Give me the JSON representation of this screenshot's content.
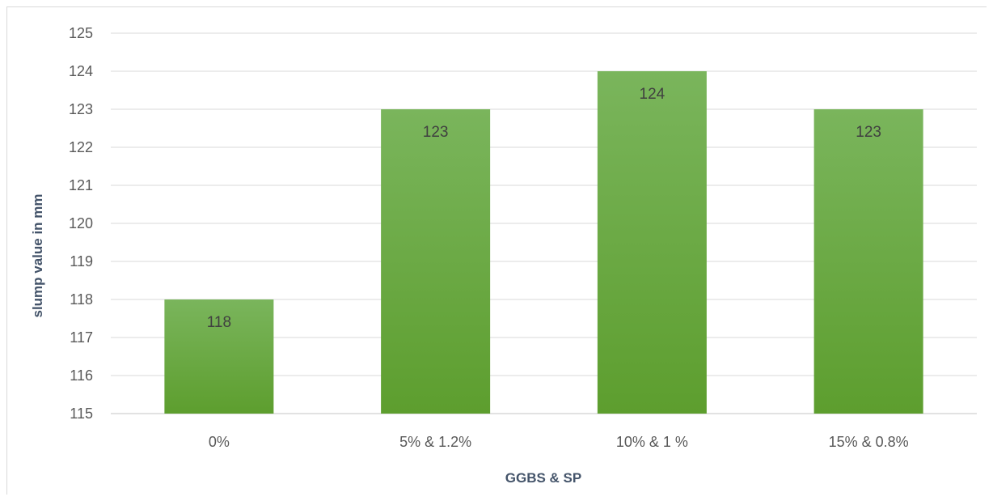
{
  "chart_data": {
    "type": "bar",
    "title": "",
    "xlabel": "GGBS & SP",
    "ylabel": "slump value in mm",
    "categories": [
      "0%",
      "5% & 1.2%",
      "10% & 1 %",
      "15% & 0.8%"
    ],
    "values": [
      118,
      123,
      124,
      123
    ],
    "data_labels": [
      "118",
      "123",
      "124",
      "123"
    ],
    "ylim": [
      115,
      125
    ],
    "yticks": [
      115,
      116,
      117,
      118,
      119,
      120,
      121,
      122,
      123,
      124,
      125
    ],
    "grid": true,
    "legend": "none",
    "colors": {
      "bar_top": "#7ab55c",
      "bar_bottom": "#5d9e2e",
      "gridline": "#d9d9d9",
      "tick_text": "#595959",
      "axis_title": "#44546a"
    }
  }
}
